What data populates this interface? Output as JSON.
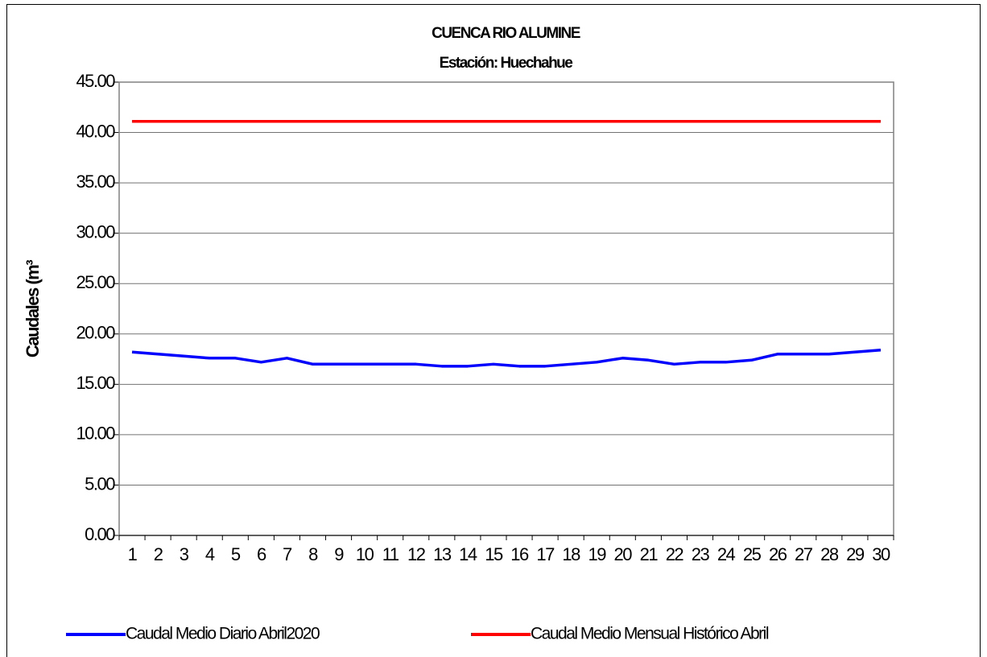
{
  "chart_data": {
    "type": "line",
    "title": "CUENCA RIO ALUMINE",
    "subtitle": "Estación: Huechahue",
    "y_label": "Caudales (m³",
    "categories": [
      "1",
      "2",
      "3",
      "4",
      "5",
      "6",
      "7",
      "8",
      "9",
      "10",
      "11",
      "12",
      "13",
      "14",
      "15",
      "16",
      "17",
      "18",
      "19",
      "20",
      "21",
      "22",
      "23",
      "24",
      "25",
      "26",
      "27",
      "28",
      "29",
      "30"
    ],
    "series": [
      {
        "name": "Caudal Medio Diario Abril2020",
        "color": "#0000ff",
        "values": [
          18.2,
          18.0,
          17.8,
          17.6,
          17.6,
          17.2,
          17.6,
          17.0,
          17.0,
          17.0,
          17.0,
          17.0,
          16.8,
          16.8,
          17.0,
          16.8,
          16.8,
          17.0,
          17.2,
          17.6,
          17.4,
          17.0,
          17.2,
          17.2,
          17.4,
          18.0,
          18.0,
          18.0,
          18.2,
          18.4
        ]
      },
      {
        "name": "Caudal Medio Mensual Histórico Abril",
        "color": "#ff0000",
        "values": [
          41.1,
          41.1,
          41.1,
          41.1,
          41.1,
          41.1,
          41.1,
          41.1,
          41.1,
          41.1,
          41.1,
          41.1,
          41.1,
          41.1,
          41.1,
          41.1,
          41.1,
          41.1,
          41.1,
          41.1,
          41.1,
          41.1,
          41.1,
          41.1,
          41.1,
          41.1,
          41.1,
          41.1,
          41.1,
          41.1
        ]
      }
    ],
    "ylim": [
      0,
      45
    ],
    "yticks": [
      {
        "value": 0,
        "label": "0.00"
      },
      {
        "value": 5,
        "label": "5.00"
      },
      {
        "value": 10,
        "label": "10.00"
      },
      {
        "value": 15,
        "label": "15.00"
      },
      {
        "value": 20,
        "label": "20.00"
      },
      {
        "value": 25,
        "label": "25.00"
      },
      {
        "value": 30,
        "label": "30.00"
      },
      {
        "value": 35,
        "label": "35.00"
      },
      {
        "value": 40,
        "label": "40.00"
      },
      {
        "value": 45,
        "label": "45.00"
      }
    ],
    "grid": true,
    "legend": "bottom"
  }
}
